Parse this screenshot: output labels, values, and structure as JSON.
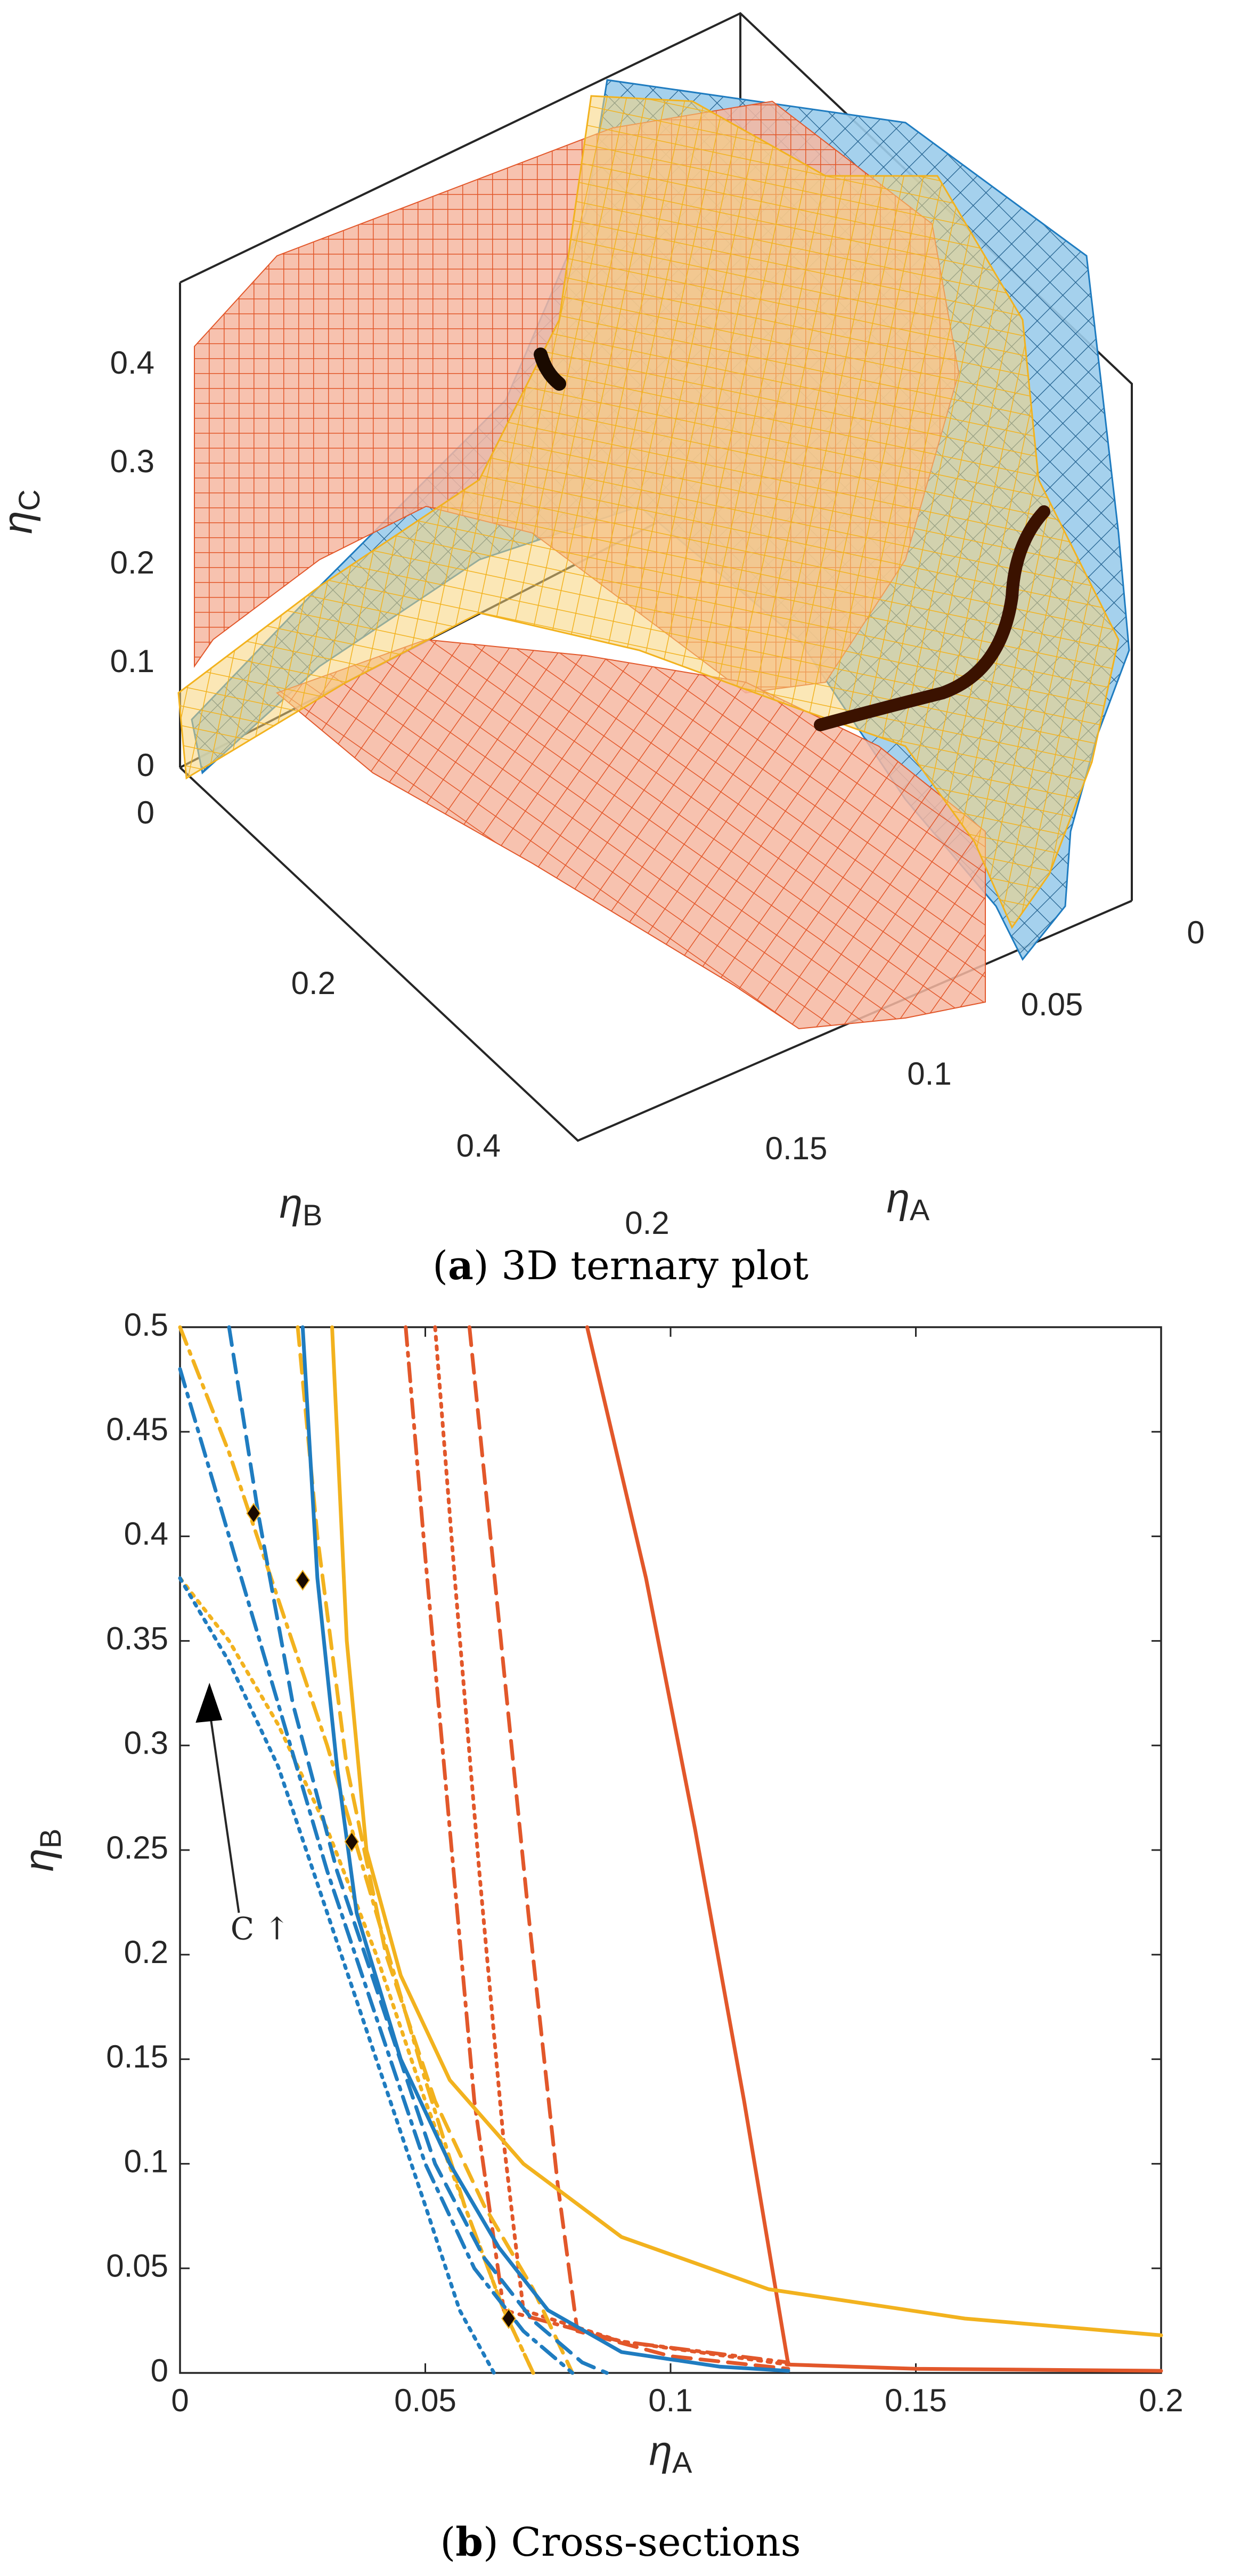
{
  "colors": {
    "red": "#E2572A",
    "red_fill": "#F6B7A1",
    "blue": "#1F7CC0",
    "blue_fill": "#9CCCEB",
    "yellow": "#F2B21E",
    "axis": "#262626",
    "marker": "#1A0A00"
  },
  "panel_a": {
    "caption_letter": "a",
    "caption_text": " 3D ternary plot",
    "axis_c": {
      "label": "η",
      "sub": "C",
      "ticks": [
        "0",
        "0.1",
        "0.2",
        "0.3",
        "0.4"
      ]
    },
    "axis_b": {
      "label": "η",
      "sub": "B",
      "ticks": [
        "0",
        "0.2",
        "0.4"
      ]
    },
    "axis_a": {
      "label": "η",
      "sub": "A",
      "ticks": [
        "0",
        "0.05",
        "0.1",
        "0.15",
        "0.2"
      ]
    }
  },
  "panel_b": {
    "caption_letter": "b",
    "caption_text": " Cross-sections",
    "annotation": "C ↑",
    "chart_data": {
      "type": "line",
      "title": "",
      "xlabel": "η_A",
      "ylabel": "η_B",
      "xlim": [
        0,
        0.2
      ],
      "ylim": [
        0,
        0.5
      ],
      "x_ticks": [
        "0",
        "0.05",
        "0.1",
        "0.15",
        "0.2"
      ],
      "y_ticks": [
        "0",
        "0.05",
        "0.1",
        "0.15",
        "0.2",
        "0.25",
        "0.3",
        "0.35",
        "0.4",
        "0.45",
        "0.5"
      ],
      "series": [
        {
          "name": "red-solid",
          "color": "red",
          "dash": "solid",
          "x": [
            0.083,
            0.095,
            0.105,
            0.115,
            0.124,
            0.15,
            0.2
          ],
          "y": [
            0.5,
            0.38,
            0.26,
            0.13,
            0.004,
            0.002,
            0.001
          ]
        },
        {
          "name": "red-dashed",
          "color": "red",
          "dash": "dashed",
          "x": [
            0.059,
            0.065,
            0.071,
            0.077,
            0.081,
            0.1,
            0.124
          ],
          "y": [
            0.5,
            0.36,
            0.22,
            0.09,
            0.02,
            0.008,
            0.002
          ]
        },
        {
          "name": "red-dotted",
          "color": "red",
          "dash": "dotted",
          "x": [
            0.052,
            0.056,
            0.061,
            0.066,
            0.07,
            0.09,
            0.124
          ],
          "y": [
            0.5,
            0.38,
            0.24,
            0.11,
            0.03,
            0.015,
            0.004
          ]
        },
        {
          "name": "red-dashdot",
          "color": "red",
          "dash": "dashdot",
          "x": [
            0.046,
            0.05,
            0.055,
            0.06,
            0.066,
            0.09,
            0.124
          ],
          "y": [
            0.5,
            0.39,
            0.26,
            0.13,
            0.03,
            0.015,
            0.005
          ]
        },
        {
          "name": "yellow-solid",
          "color": "yellow",
          "dash": "solid",
          "x": [
            0.031,
            0.034,
            0.038,
            0.045,
            0.055,
            0.07,
            0.09,
            0.12,
            0.16,
            0.2
          ],
          "y": [
            0.5,
            0.35,
            0.25,
            0.19,
            0.14,
            0.1,
            0.065,
            0.04,
            0.026,
            0.018
          ]
        },
        {
          "name": "yellow-dashed",
          "color": "yellow",
          "dash": "dashed",
          "x": [
            0.024,
            0.028,
            0.034,
            0.042,
            0.052,
            0.062,
            0.072,
            0.08
          ],
          "y": [
            0.5,
            0.4,
            0.29,
            0.2,
            0.13,
            0.08,
            0.04,
            0.0
          ]
        },
        {
          "name": "yellow-dashdot",
          "color": "yellow",
          "dash": "dashdot",
          "x": [
            0.0,
            0.01,
            0.02,
            0.03,
            0.04,
            0.05,
            0.058,
            0.066,
            0.072
          ],
          "y": [
            0.5,
            0.44,
            0.37,
            0.3,
            0.22,
            0.14,
            0.08,
            0.03,
            0.0
          ]
        },
        {
          "name": "yellow-dotted",
          "color": "yellow",
          "dash": "dotted",
          "x": [
            0.0,
            0.01,
            0.02,
            0.03,
            0.04,
            0.05,
            0.058,
            0.066,
            0.072
          ],
          "y": [
            0.38,
            0.35,
            0.31,
            0.26,
            0.2,
            0.13,
            0.08,
            0.03,
            0.0
          ]
        },
        {
          "name": "blue-solid",
          "color": "blue",
          "dash": "solid",
          "x": [
            0.025,
            0.028,
            0.032,
            0.036,
            0.045,
            0.055,
            0.065,
            0.075,
            0.09,
            0.11,
            0.124
          ],
          "y": [
            0.5,
            0.38,
            0.29,
            0.22,
            0.15,
            0.1,
            0.06,
            0.03,
            0.01,
            0.003,
            0.001
          ]
        },
        {
          "name": "blue-dashed",
          "color": "blue",
          "dash": "dashed",
          "x": [
            0.01,
            0.016,
            0.023,
            0.032,
            0.042,
            0.052,
            0.062,
            0.072,
            0.082,
            0.087
          ],
          "y": [
            0.5,
            0.41,
            0.32,
            0.24,
            0.17,
            0.1,
            0.055,
            0.025,
            0.005,
            0.0
          ]
        },
        {
          "name": "blue-dashdot",
          "color": "blue",
          "dash": "dashdot",
          "x": [
            0.0,
            0.01,
            0.02,
            0.03,
            0.04,
            0.05,
            0.06,
            0.07,
            0.08
          ],
          "y": [
            0.48,
            0.4,
            0.32,
            0.24,
            0.17,
            0.1,
            0.05,
            0.02,
            0.0
          ]
        },
        {
          "name": "blue-dotted",
          "color": "blue",
          "dash": "dotted",
          "x": [
            0.0,
            0.01,
            0.02,
            0.03,
            0.04,
            0.05,
            0.057,
            0.064
          ],
          "y": [
            0.38,
            0.34,
            0.29,
            0.22,
            0.15,
            0.08,
            0.03,
            0.0
          ]
        }
      ],
      "markers": [
        {
          "x": 0.015,
          "y": 0.411
        },
        {
          "x": 0.025,
          "y": 0.379
        },
        {
          "x": 0.035,
          "y": 0.254
        },
        {
          "x": 0.067,
          "y": 0.026
        }
      ],
      "arrow": {
        "from": [
          0.012,
          0.22
        ],
        "to": [
          0.006,
          0.33
        ]
      }
    }
  }
}
